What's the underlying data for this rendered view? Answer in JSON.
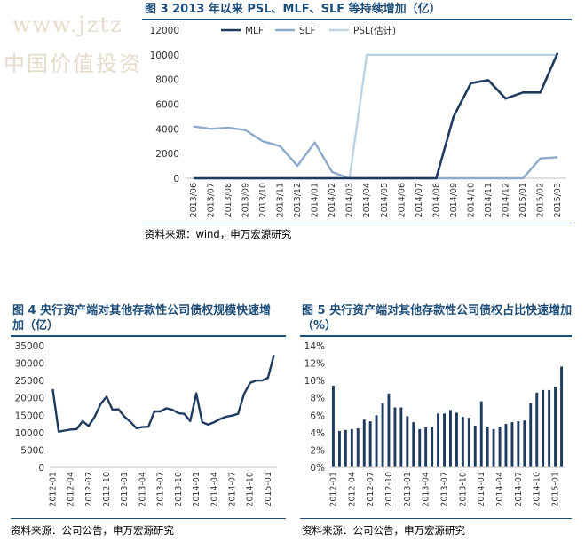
{
  "watermark": {
    "line1": "www.jztz",
    "line2": "中国价值投资"
  },
  "figures": [
    {
      "title": "图 3 2013 年以来 PSL、MLF、SLF 等持续增加（亿）",
      "source": "资料来源：wind，申万宏源研究"
    },
    {
      "title_line1": "图 4 央行资产端对其他存款性公司债权规模快速增",
      "title_line2": "加（亿）",
      "source": "资料来源：公司公告，申万宏源研究"
    },
    {
      "title_line1": "图 5 央行资产端对其他存款性公司债权占比快速增加",
      "title_line2": "（%）",
      "source": "资料来源：公司公告，申万宏源研究"
    }
  ],
  "colors": {
    "mlf": "#1f3a5f",
    "slf": "#8eaacb",
    "psl": "#bcd3e6",
    "line4": "#1f3a5f",
    "bar5": "#1f3a5f",
    "title": "#1f4e79"
  },
  "chart_data": [
    {
      "type": "line",
      "x": [
        "2013/06",
        "2013/07",
        "2013/08",
        "2013/09",
        "2013/10",
        "2013/11",
        "2013/12",
        "2014/01",
        "2014/02",
        "2014/03",
        "2014/04",
        "2014/05",
        "2014/06",
        "2014/07",
        "2014/08",
        "2014/09",
        "2014/10",
        "2014/11",
        "2014/12",
        "2015/01",
        "2015/02",
        "2015/03"
      ],
      "ylim": [
        0,
        12000
      ],
      "yticks": [
        0,
        2000,
        4000,
        6000,
        8000,
        10000,
        12000
      ],
      "legend_position": "top",
      "series": [
        {
          "name": "MLF",
          "values": [
            0,
            0,
            0,
            0,
            0,
            0,
            0,
            0,
            0,
            0,
            0,
            0,
            0,
            0,
            0,
            5000,
            7700,
            7950,
            6450,
            6950,
            6950,
            10150
          ]
        },
        {
          "name": "SLF",
          "values": [
            4200,
            4000,
            4100,
            3900,
            3000,
            2600,
            1000,
            2900,
            500,
            0,
            0,
            0,
            0,
            0,
            0,
            0,
            0,
            0,
            0,
            0,
            1600,
            1700
          ]
        },
        {
          "name": "PSL(估计)",
          "values": [
            0,
            0,
            0,
            0,
            0,
            0,
            0,
            0,
            0,
            0,
            10000,
            10000,
            10000,
            10000,
            10000,
            10000,
            10000,
            10000,
            10000,
            10000,
            10000,
            10000
          ]
        }
      ]
    },
    {
      "type": "line",
      "x": [
        "2012-01",
        "2012-02",
        "2012-03",
        "2012-04",
        "2012-05",
        "2012-06",
        "2012-07",
        "2012-08",
        "2012-09",
        "2012-10",
        "2012-11",
        "2012-12",
        "2013-01",
        "2013-02",
        "2013-03",
        "2013-04",
        "2013-05",
        "2013-06",
        "2013-07",
        "2013-08",
        "2013-09",
        "2013-10",
        "2013-11",
        "2013-12",
        "2014-01",
        "2014-02",
        "2014-03",
        "2014-04",
        "2014-05",
        "2014-06",
        "2014-07",
        "2014-08",
        "2014-09",
        "2014-10",
        "2014-11",
        "2014-12",
        "2015-01",
        "2015-02"
      ],
      "xticklabels": [
        "2012-01",
        "2012-04",
        "2012-07",
        "2012-10",
        "2013-01",
        "2013-04",
        "2013-07",
        "2013-10",
        "2014-01",
        "2014-04",
        "2014-07",
        "2014-10",
        "2015-01"
      ],
      "ylim": [
        0,
        35000
      ],
      "yticks": [
        0,
        5000,
        10000,
        15000,
        20000,
        25000,
        30000,
        35000
      ],
      "series": [
        {
          "values": [
            22500,
            10300,
            10600,
            10900,
            11000,
            13300,
            11900,
            14500,
            18200,
            20300,
            16600,
            16700,
            14600,
            13100,
            11300,
            11600,
            11700,
            16100,
            16100,
            17000,
            16600,
            15600,
            15400,
            13300,
            21300,
            13000,
            12300,
            13000,
            13900,
            14600,
            14900,
            15400,
            21100,
            24300,
            25000,
            25000,
            25800,
            32400
          ]
        }
      ]
    },
    {
      "type": "bar",
      "categories": [
        "2012-01",
        "2012-02",
        "2012-03",
        "2012-04",
        "2012-05",
        "2012-06",
        "2012-07",
        "2012-08",
        "2012-09",
        "2012-10",
        "2012-11",
        "2012-12",
        "2013-01",
        "2013-02",
        "2013-03",
        "2013-04",
        "2013-05",
        "2013-06",
        "2013-07",
        "2013-08",
        "2013-09",
        "2013-10",
        "2013-11",
        "2013-12",
        "2014-01",
        "2014-02",
        "2014-03",
        "2014-04",
        "2014-05",
        "2014-06",
        "2014-07",
        "2014-08",
        "2014-09",
        "2014-10",
        "2014-11",
        "2014-12",
        "2015-01",
        "2015-02"
      ],
      "xticklabels": [
        "2012-01",
        "2012-04",
        "2012-07",
        "2012-10",
        "2013-01",
        "2013-04",
        "2013-07",
        "2013-10",
        "2014-01",
        "2014-04",
        "2014-07",
        "2014-10",
        "2015-01"
      ],
      "values": [
        9.4,
        4.2,
        4.3,
        4.4,
        4.5,
        5.5,
        5.3,
        6.0,
        7.4,
        8.5,
        6.9,
        6.9,
        5.9,
        5.2,
        4.4,
        4.6,
        4.6,
        6.2,
        6.2,
        6.6,
        6.3,
        5.8,
        5.7,
        4.8,
        7.6,
        4.7,
        4.4,
        4.7,
        5.0,
        5.2,
        5.3,
        5.4,
        7.4,
        8.6,
        8.9,
        8.9,
        9.2,
        11.6
      ],
      "ylim": [
        0,
        14
      ],
      "yticks": [
        "0%",
        "2%",
        "4%",
        "6%",
        "8%",
        "10%",
        "12%",
        "14%"
      ]
    }
  ]
}
